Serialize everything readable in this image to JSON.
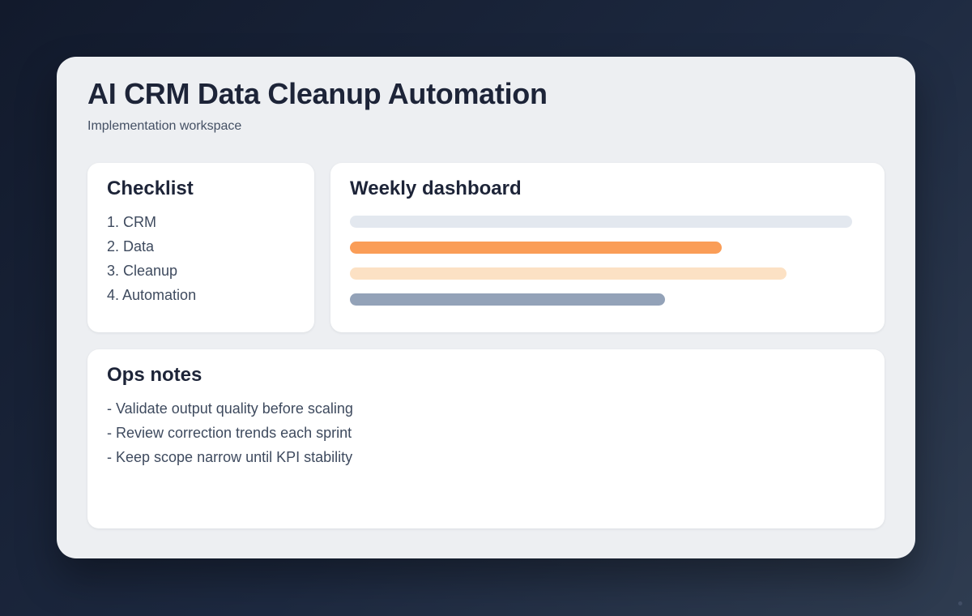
{
  "page": {
    "title": "AI CRM Data Cleanup Automation",
    "subtitle": "Implementation workspace"
  },
  "checklist": {
    "heading": "Checklist",
    "items": [
      "1. CRM",
      "2. Data",
      "3. Cleanup",
      "4. Automation"
    ]
  },
  "dashboard": {
    "heading": "Weekly dashboard",
    "bars": [
      {
        "name": "bar-slate-light",
        "color": "#e3e8ef",
        "width_pct": 97.5
      },
      {
        "name": "bar-orange",
        "color": "#fa9d57",
        "width_pct": 72.2
      },
      {
        "name": "bar-peach",
        "color": "#fce1c4",
        "width_pct": 84.7
      },
      {
        "name": "bar-slate",
        "color": "#93a2b8",
        "width_pct": 61.2
      }
    ]
  },
  "ops_notes": {
    "heading": "Ops notes",
    "items": [
      "- Validate output quality before scaling",
      "- Review correction trends each sprint",
      "- Keep scope narrow until KPI stability"
    ]
  },
  "colors": {
    "background_gradient_start": "#121a2c",
    "background_gradient_end": "#2f3c50",
    "panel_background": "#edeff2",
    "card_background": "#ffffff",
    "heading_text": "#1d2438",
    "body_text": "#3e4a5e"
  }
}
